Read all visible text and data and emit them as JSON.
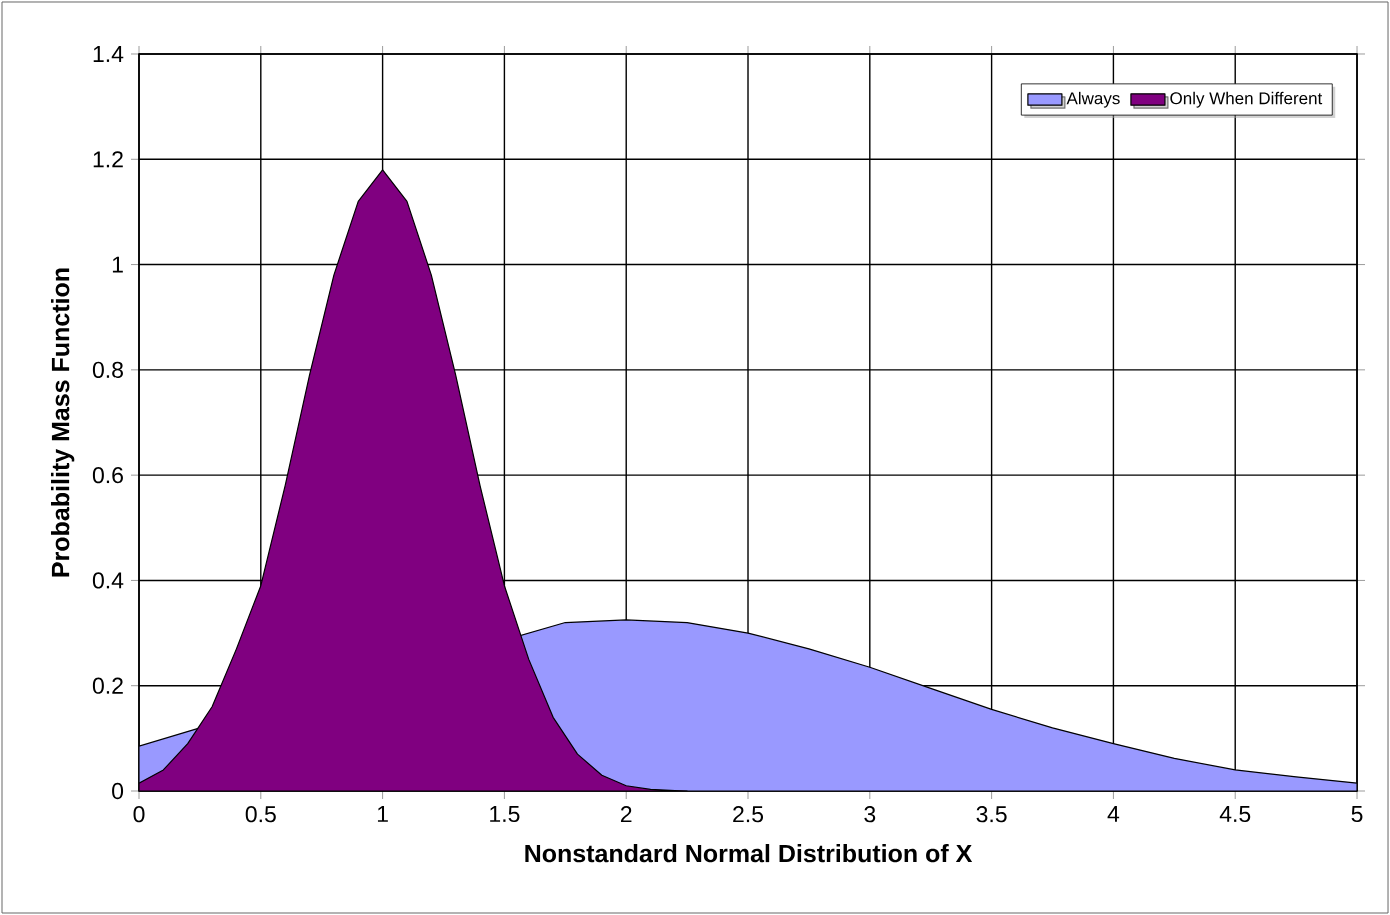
{
  "chart_data": {
    "type": "area",
    "xlabel": "Nonstandard Normal Distribution of X",
    "ylabel": "Probability Mass Function",
    "xlim": [
      0,
      5
    ],
    "ylim": [
      0,
      1.4
    ],
    "xticks": [
      0,
      0.5,
      1,
      1.5,
      2,
      2.5,
      3,
      3.5,
      4,
      4.5,
      5
    ],
    "yticks": [
      0,
      0.2,
      0.4,
      0.6,
      0.8,
      1,
      1.2,
      1.4
    ],
    "grid": true,
    "legend": "top right",
    "series": [
      {
        "name": "Always",
        "color": "#9999ff",
        "x": [
          0,
          0.25,
          0.5,
          0.75,
          1,
          1.25,
          1.5,
          1.75,
          2,
          2.25,
          2.5,
          2.75,
          3,
          3.25,
          3.5,
          3.75,
          4,
          4.25,
          4.5,
          4.75,
          5
        ],
        "values": [
          0.085,
          0.12,
          null,
          null,
          null,
          null,
          null,
          0.32,
          0.325,
          0.32,
          0.3,
          0.27,
          0.235,
          0.195,
          0.155,
          0.12,
          0.09,
          0.062,
          0.04,
          0.027,
          0.015
        ]
      },
      {
        "name": "Only When Different",
        "color": "#800080",
        "x": [
          0,
          0.1,
          0.2,
          0.3,
          0.4,
          0.5,
          0.6,
          0.7,
          0.8,
          0.9,
          1,
          1.1,
          1.2,
          1.3,
          1.4,
          1.5,
          1.6,
          1.7,
          1.8,
          1.9,
          2,
          2.1,
          2.2,
          2.25
        ],
        "values": [
          0.015,
          0.04,
          0.09,
          0.16,
          0.27,
          0.39,
          0.58,
          0.79,
          0.98,
          1.12,
          1.18,
          1.12,
          0.98,
          0.79,
          0.58,
          0.39,
          0.25,
          0.14,
          0.07,
          0.03,
          0.01,
          0.003,
          0.001,
          0
        ]
      }
    ]
  }
}
